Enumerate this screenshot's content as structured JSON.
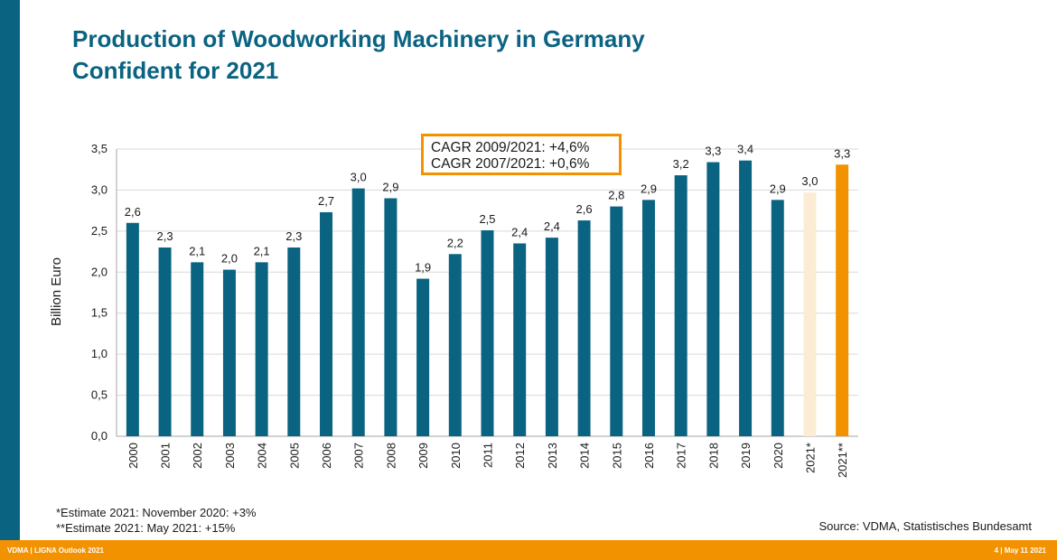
{
  "header": {
    "title": "Production of Woodworking Machinery in Germany",
    "subtitle": "Confident for 2021"
  },
  "annotation": {
    "lines": [
      "CAGR 2009/2021: +4,6%",
      "CAGR 2007/2021: +0,6%"
    ],
    "border_color": "#f39200"
  },
  "footnotes": [
    "*Estimate 2021: November 2020: +3%",
    "**Estimate 2021: May 2021: +15%"
  ],
  "source": "Source: VDMA, Statistisches Bundesamt",
  "footer": {
    "left": "VDMA | LIGNA Outlook 2021",
    "right": "4 | May 11 2021"
  },
  "colors": {
    "primary": "#0b6382",
    "estimate_light": "#fcecd4",
    "accent": "#f39200"
  },
  "chart_data": {
    "type": "bar",
    "ylabel": "Billion Euro",
    "ylim": [
      0,
      3.5
    ],
    "yticks": [
      "0,0",
      "0,5",
      "1,0",
      "1,5",
      "2,0",
      "2,5",
      "3,0",
      "3,5"
    ],
    "grid": true,
    "categories": [
      "2000",
      "2001",
      "2002",
      "2003",
      "2004",
      "2005",
      "2006",
      "2007",
      "2008",
      "2009",
      "2010",
      "2011",
      "2012",
      "2013",
      "2014",
      "2015",
      "2016",
      "2017",
      "2018",
      "2019",
      "2020",
      "2021*",
      "2021**"
    ],
    "values": [
      2.6,
      2.3,
      2.12,
      2.03,
      2.12,
      2.3,
      2.73,
      3.02,
      2.9,
      1.92,
      2.22,
      2.51,
      2.35,
      2.42,
      2.63,
      2.8,
      2.88,
      3.18,
      3.34,
      3.36,
      2.88,
      2.97,
      3.31
    ],
    "labels": [
      "2,6",
      "2,3",
      "2,1",
      "2,0",
      "2,1",
      "2,3",
      "2,7",
      "3,0",
      "2,9",
      "1,9",
      "2,2",
      "2,5",
      "2,4",
      "2,4",
      "2,6",
      "2,8",
      "2,9",
      "3,2",
      "3,3",
      "3,4",
      "2,9",
      "3,0",
      "3,3"
    ],
    "bar_colors": [
      "#0b6382",
      "#0b6382",
      "#0b6382",
      "#0b6382",
      "#0b6382",
      "#0b6382",
      "#0b6382",
      "#0b6382",
      "#0b6382",
      "#0b6382",
      "#0b6382",
      "#0b6382",
      "#0b6382",
      "#0b6382",
      "#0b6382",
      "#0b6382",
      "#0b6382",
      "#0b6382",
      "#0b6382",
      "#0b6382",
      "#0b6382",
      "#fcecd4",
      "#f39200"
    ]
  }
}
